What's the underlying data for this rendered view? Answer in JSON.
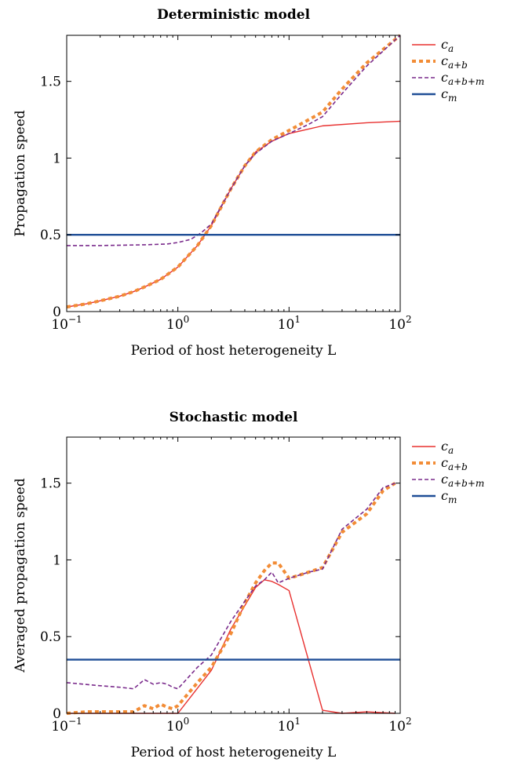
{
  "chart_data": [
    {
      "type": "line",
      "title": "Deterministic model",
      "xlabel": "Period of host heterogeneity L",
      "ylabel": "Propagation speed",
      "xscale": "log",
      "xlim": [
        0.1,
        100
      ],
      "ylim": [
        0,
        1.8
      ],
      "xticks": [
        {
          "value": 0.1,
          "base": "10",
          "exp": "−1"
        },
        {
          "value": 1,
          "base": "10",
          "exp": "0"
        },
        {
          "value": 10,
          "base": "10",
          "exp": "1"
        },
        {
          "value": 100,
          "base": "10",
          "exp": "2"
        }
      ],
      "yticks": [
        {
          "value": 0,
          "label": "0"
        },
        {
          "value": 0.5,
          "label": "0.5"
        },
        {
          "value": 1,
          "label": "1"
        },
        {
          "value": 1.5,
          "label": "1.5"
        }
      ],
      "legend_position": "outside-right",
      "series": [
        {
          "name": "c_a",
          "base": "c",
          "sub": "a",
          "color": "#e8302f",
          "width": 1.4,
          "dash": "",
          "x": [
            0.1,
            0.15,
            0.2,
            0.3,
            0.4,
            0.5,
            0.7,
            1,
            1.5,
            2,
            3,
            4,
            5,
            7,
            10,
            20,
            50,
            100
          ],
          "y": [
            0.03,
            0.05,
            0.07,
            0.1,
            0.13,
            0.16,
            0.21,
            0.29,
            0.43,
            0.56,
            0.8,
            0.95,
            1.04,
            1.11,
            1.16,
            1.21,
            1.23,
            1.24
          ]
        },
        {
          "name": "c_{a+b}",
          "base": "c",
          "sub": "a+b",
          "color": "#f28c36",
          "width": 4,
          "dash": "5,4",
          "x": [
            0.1,
            0.15,
            0.2,
            0.3,
            0.4,
            0.5,
            0.7,
            1,
            1.5,
            2,
            3,
            4,
            5,
            7,
            10,
            15,
            20,
            30,
            50,
            100
          ],
          "y": [
            0.03,
            0.05,
            0.07,
            0.1,
            0.13,
            0.16,
            0.21,
            0.29,
            0.43,
            0.56,
            0.8,
            0.95,
            1.04,
            1.12,
            1.18,
            1.25,
            1.3,
            1.45,
            1.62,
            1.8
          ]
        },
        {
          "name": "c_{a+b+m}",
          "base": "c",
          "sub": "a+b+m",
          "color": "#7a2b8c",
          "width": 1.6,
          "dash": "5,3",
          "x": [
            0.1,
            0.2,
            0.5,
            0.8,
            1,
            1.3,
            1.6,
            2,
            3,
            4,
            5,
            7,
            10,
            15,
            20,
            30,
            50,
            100
          ],
          "y": [
            0.43,
            0.43,
            0.435,
            0.44,
            0.45,
            0.47,
            0.51,
            0.57,
            0.8,
            0.95,
            1.03,
            1.11,
            1.16,
            1.22,
            1.27,
            1.42,
            1.6,
            1.8
          ]
        },
        {
          "name": "c_m",
          "base": "c",
          "sub": "m",
          "color": "#1f4e96",
          "width": 2.4,
          "dash": "",
          "x": [
            0.1,
            100
          ],
          "y": [
            0.5,
            0.5
          ]
        }
      ]
    },
    {
      "type": "line",
      "title": "Stochastic model",
      "xlabel": "Period of host heterogeneity L",
      "ylabel": "Averaged propagation speed",
      "xscale": "log",
      "xlim": [
        0.1,
        100
      ],
      "ylim": [
        0,
        1.8
      ],
      "xticks": [
        {
          "value": 0.1,
          "base": "10",
          "exp": "−1"
        },
        {
          "value": 1,
          "base": "10",
          "exp": "0"
        },
        {
          "value": 10,
          "base": "10",
          "exp": "1"
        },
        {
          "value": 100,
          "base": "10",
          "exp": "2"
        }
      ],
      "yticks": [
        {
          "value": 0,
          "label": "0"
        },
        {
          "value": 0.5,
          "label": "0.5"
        },
        {
          "value": 1,
          "label": "1"
        },
        {
          "value": 1.5,
          "label": "1.5"
        }
      ],
      "legend_position": "outside-right",
      "series": [
        {
          "name": "c_a",
          "base": "c",
          "sub": "a",
          "color": "#e8302f",
          "width": 1.4,
          "dash": "",
          "x": [
            0.1,
            0.2,
            0.5,
            0.8,
            1,
            2,
            3,
            5,
            6,
            7,
            8,
            10,
            20,
            30,
            50,
            90
          ],
          "y": [
            0,
            0,
            0,
            0,
            0,
            0.28,
            0.55,
            0.82,
            0.87,
            0.86,
            0.84,
            0.8,
            0.02,
            0,
            0.01,
            0
          ]
        },
        {
          "name": "c_{a+b}",
          "base": "c",
          "sub": "a+b",
          "color": "#f28c36",
          "width": 4,
          "dash": "5,4",
          "x": [
            0.1,
            0.15,
            0.2,
            0.3,
            0.4,
            0.5,
            0.6,
            0.7,
            0.8,
            0.9,
            1,
            1.5,
            2,
            3,
            4,
            5,
            6,
            7,
            8,
            10,
            15,
            20,
            30,
            50,
            70,
            90
          ],
          "y": [
            0,
            0.01,
            0.01,
            0.01,
            0.01,
            0.05,
            0.03,
            0.06,
            0.04,
            0.03,
            0.05,
            0.2,
            0.3,
            0.52,
            0.72,
            0.85,
            0.93,
            0.98,
            0.98,
            0.88,
            0.92,
            0.95,
            1.18,
            1.3,
            1.45,
            1.5
          ]
        },
        {
          "name": "c_{a+b+m}",
          "base": "c",
          "sub": "a+b+m",
          "color": "#7a2b8c",
          "width": 1.6,
          "dash": "5,3",
          "x": [
            0.1,
            0.2,
            0.3,
            0.4,
            0.5,
            0.6,
            0.7,
            0.8,
            0.9,
            1,
            1.5,
            2,
            3,
            4,
            5,
            6,
            7,
            8,
            10,
            15,
            20,
            30,
            50,
            70,
            90
          ],
          "y": [
            0.2,
            0.18,
            0.17,
            0.16,
            0.22,
            0.19,
            0.2,
            0.19,
            0.17,
            0.16,
            0.3,
            0.38,
            0.6,
            0.73,
            0.83,
            0.87,
            0.92,
            0.85,
            0.88,
            0.92,
            0.94,
            1.2,
            1.33,
            1.47,
            1.5
          ]
        },
        {
          "name": "c_m",
          "base": "c",
          "sub": "m",
          "color": "#1f4e96",
          "width": 2.4,
          "dash": "",
          "x": [
            0.1,
            100
          ],
          "y": [
            0.35,
            0.35
          ]
        }
      ]
    }
  ]
}
